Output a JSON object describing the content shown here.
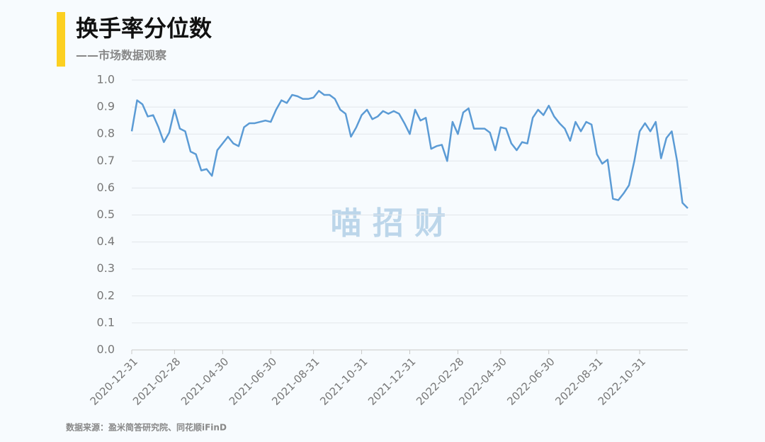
{
  "chart_data": {
    "type": "line",
    "title": "换手率分位数",
    "subtitle": "——市场数据观察",
    "watermark": "喵  招  财",
    "source": "数据来源：盈米简答研究院、同花顺iFinD",
    "categories": [
      "2020-12-31",
      null,
      null,
      null,
      null,
      null,
      null,
      null,
      "2021-02-28",
      null,
      null,
      null,
      null,
      null,
      null,
      null,
      null,
      "2021-04-30",
      null,
      null,
      null,
      null,
      null,
      null,
      null,
      null,
      "2021-06-30",
      null,
      null,
      null,
      null,
      null,
      null,
      null,
      "2021-08-31",
      null,
      null,
      null,
      null,
      null,
      null,
      null,
      null,
      "2021-10-31",
      null,
      null,
      null,
      null,
      null,
      null,
      null,
      null,
      "2021-12-31",
      null,
      null,
      null,
      null,
      null,
      null,
      null,
      null,
      "2022-02-28",
      null,
      null,
      null,
      null,
      null,
      null,
      null,
      "2022-04-30",
      null,
      null,
      null,
      null,
      null,
      null,
      null,
      null,
      "2022-06-30",
      null,
      null,
      null,
      null,
      null,
      null,
      null,
      null,
      "2022-08-31",
      null,
      null,
      null,
      null,
      null,
      null,
      null,
      "2022-10-31",
      null,
      null,
      null,
      null,
      null,
      null,
      null,
      null,
      null
    ],
    "series": [
      {
        "name": "换手率分位数",
        "color": "#5b9bd5",
        "values": [
          0.81,
          0.925,
          0.91,
          0.865,
          0.87,
          0.825,
          0.77,
          0.805,
          0.89,
          0.82,
          0.81,
          0.735,
          0.725,
          0.665,
          0.67,
          0.645,
          0.74,
          0.765,
          0.79,
          0.765,
          0.755,
          0.825,
          0.84,
          0.84,
          0.845,
          0.85,
          0.845,
          0.89,
          0.925,
          0.915,
          0.945,
          0.94,
          0.93,
          0.93,
          0.935,
          0.96,
          0.945,
          0.945,
          0.93,
          0.89,
          0.875,
          0.79,
          0.825,
          0.87,
          0.89,
          0.855,
          0.865,
          0.885,
          0.875,
          0.885,
          0.875,
          0.84,
          0.8,
          0.89,
          0.85,
          0.86,
          0.745,
          0.755,
          0.76,
          0.7,
          0.845,
          0.8,
          0.88,
          0.895,
          0.82,
          0.82,
          0.82,
          0.805,
          0.74,
          0.825,
          0.82,
          0.765,
          0.74,
          0.77,
          0.765,
          0.86,
          0.89,
          0.87,
          0.905,
          0.865,
          0.84,
          0.82,
          0.775,
          0.845,
          0.81,
          0.845,
          0.835,
          0.725,
          0.69,
          0.705,
          0.56,
          0.555,
          0.58,
          0.61,
          0.7,
          0.81,
          0.84,
          0.81,
          0.845,
          0.71,
          0.785,
          0.81,
          0.7,
          0.545,
          0.525
        ]
      }
    ],
    "ylim": [
      0,
      1
    ],
    "yticks": [
      {
        "value": 0,
        "label": "0.0"
      },
      0.1,
      0.2,
      0.3,
      0.4,
      0.5,
      0.6,
      0.7,
      0.8,
      0.9,
      {
        "value": 1,
        "label": "1.0"
      }
    ],
    "grid": true
  }
}
